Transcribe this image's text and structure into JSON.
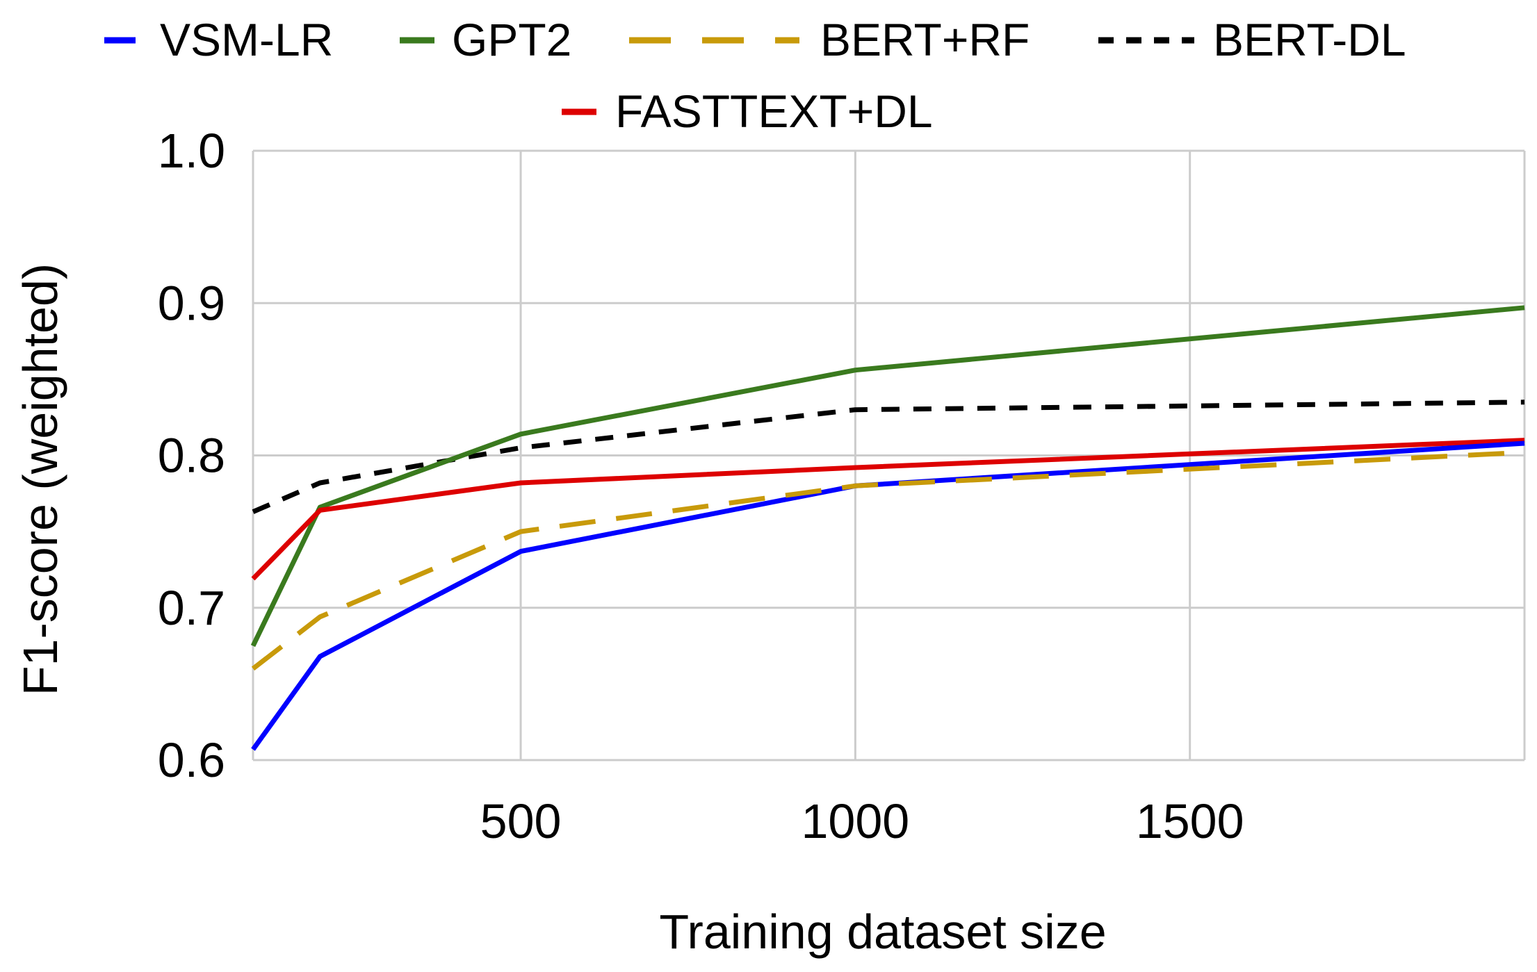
{
  "chart_data": {
    "type": "line",
    "title": "",
    "xlabel": "Training dataset size",
    "ylabel": "F1-score (weighted)",
    "xlim": [
      100,
      2000
    ],
    "ylim": [
      0.6,
      1.0
    ],
    "x_ticks": [
      500,
      1000,
      1500
    ],
    "x_tick_labels": [
      "500",
      "1000",
      "1500"
    ],
    "y_ticks": [
      0.6,
      0.7,
      0.8,
      0.9,
      1.0
    ],
    "y_tick_labels": [
      "0.6",
      "0.7",
      "0.8",
      "0.9",
      "1.0"
    ],
    "grid": true,
    "legend_position": "top",
    "x": [
      100,
      200,
      500,
      1000,
      2000
    ],
    "series": [
      {
        "name": "VSM-LR",
        "color": "#0000ff",
        "dash": "solid",
        "values": [
          0.607,
          0.668,
          0.737,
          0.78,
          0.808
        ]
      },
      {
        "name": "GPT2",
        "color": "#3a7a1e",
        "dash": "solid",
        "values": [
          0.675,
          0.766,
          0.814,
          0.856,
          0.897
        ]
      },
      {
        "name": "BERT+RF",
        "color": "#c89a0a",
        "dash": "long-dash",
        "values": [
          0.66,
          0.694,
          0.75,
          0.78,
          0.802
        ]
      },
      {
        "name": "BERT-DL",
        "color": "#000000",
        "dash": "dash",
        "values": [
          0.763,
          0.782,
          0.805,
          0.83,
          0.835
        ]
      },
      {
        "name": "FASTTEXT+DL",
        "color": "#dd0000",
        "dash": "solid",
        "values": [
          0.719,
          0.764,
          0.782,
          0.792,
          0.81
        ]
      }
    ]
  }
}
